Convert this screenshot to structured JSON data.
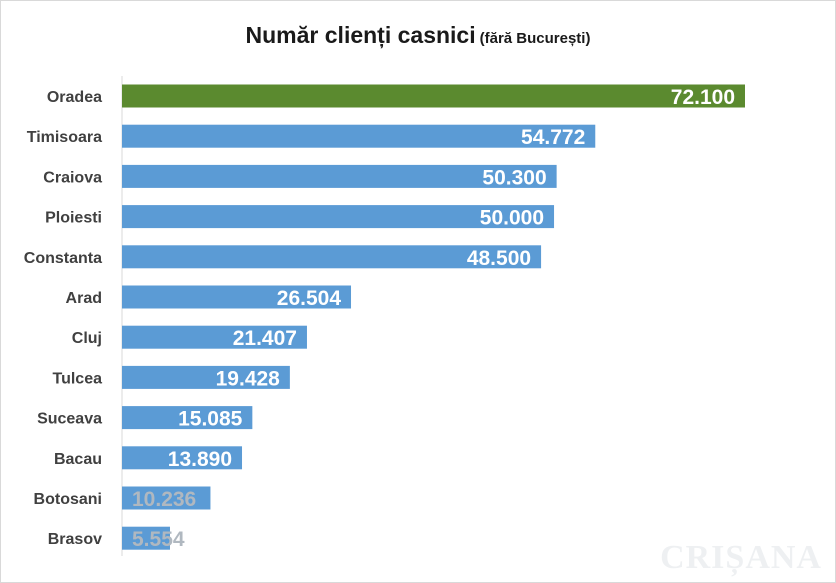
{
  "title": {
    "main": "Număr clienți casnici",
    "sub": "(fără București)"
  },
  "watermark": "CRIȘANA",
  "colors": {
    "highlight": "#5b8a2f",
    "bar": "#5b9bd5",
    "axis": "#d9d9d9"
  },
  "chart_data": {
    "type": "bar",
    "orientation": "horizontal",
    "title": "Număr clienți casnici (fără București)",
    "categories": [
      "Oradea",
      "Timisoara",
      "Craiova",
      "Ploiesti",
      "Constanta",
      "Arad",
      "Cluj",
      "Tulcea",
      "Suceava",
      "Bacau",
      "Botosani",
      "Brasov"
    ],
    "values": [
      72100,
      54772,
      50300,
      50000,
      48500,
      26504,
      21407,
      19428,
      15085,
      13890,
      10236,
      5554
    ],
    "value_labels": [
      "72.100",
      "54.772",
      "50.300",
      "50.000",
      "48.500",
      "26.504",
      "21.407",
      "19.428",
      "15.085",
      "13.890",
      "10.236",
      "5.554"
    ],
    "highlighted_category": "Oradea",
    "xlim": [
      0,
      72100
    ],
    "grid": false,
    "legend": "none"
  }
}
